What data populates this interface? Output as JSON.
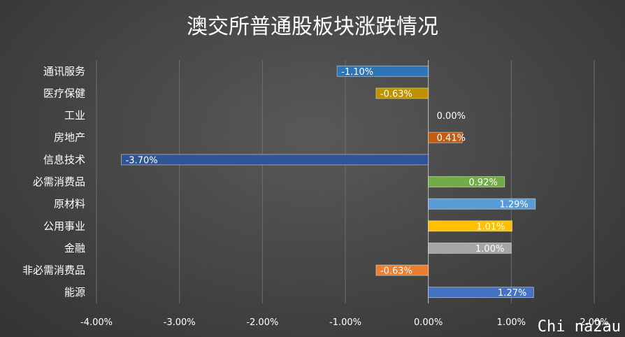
{
  "chart_data": {
    "type": "bar",
    "orientation": "horizontal",
    "title": "澳交所普通股板块涨跌情况",
    "categories": [
      "通讯服务",
      "医疗保健",
      "工业",
      "房地产",
      "信息技术",
      "必需消费品",
      "原材料",
      "公用事业",
      "金融",
      "非必需消费品",
      "能源"
    ],
    "values": [
      -1.1,
      -0.63,
      0.0,
      0.41,
      -3.7,
      0.92,
      1.29,
      1.01,
      1.0,
      -0.63,
      1.27
    ],
    "value_labels": [
      "-1.10%",
      "-0.63%",
      "0.00%",
      "0.41%",
      "-3.70%",
      "0.92%",
      "1.29%",
      "1.01%",
      "1.00%",
      "-0.63%",
      "1.27%"
    ],
    "colors": [
      "#2e75b6",
      "#bf9000",
      "#888888",
      "#c55a11",
      "#2f5597",
      "#70ad47",
      "#5b9bd5",
      "#ffc000",
      "#a5a5a5",
      "#ed7d31",
      "#4472c4"
    ],
    "xlim": [
      -4.0,
      2.0
    ],
    "xticks": [
      -4,
      -3,
      -2,
      -1,
      0,
      1,
      2
    ],
    "xtick_labels": [
      "-4.00%",
      "-3.00%",
      "-2.00%",
      "-1.00%",
      "0.00%",
      "1.00%",
      "2.00%"
    ],
    "unit": "%",
    "grid": true,
    "legend": "none"
  },
  "watermark": "Chi na2au"
}
